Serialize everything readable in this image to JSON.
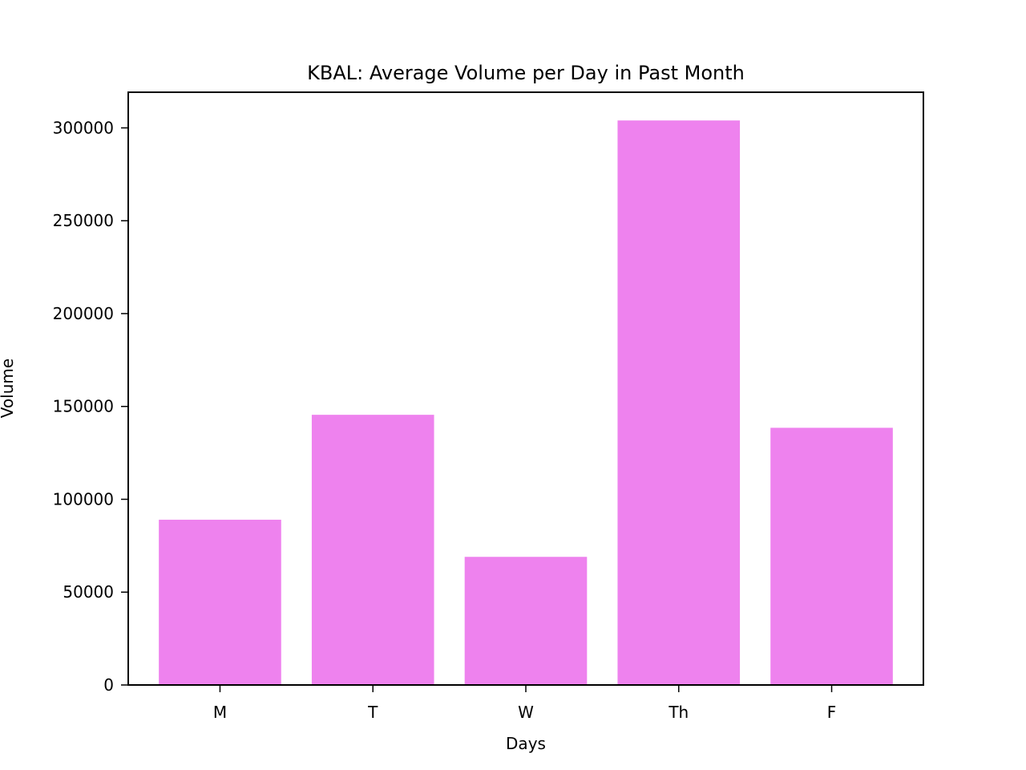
{
  "chart_data": {
    "type": "bar",
    "title": "KBAL: Average Volume per Day in Past Month",
    "xlabel": "Days",
    "ylabel": "Volume",
    "categories": [
      "M",
      "T",
      "W",
      "Th",
      "F"
    ],
    "values": [
      89000,
      145500,
      69000,
      304000,
      138500
    ],
    "ylim": [
      0,
      319200
    ],
    "yticks": [
      0,
      50000,
      100000,
      150000,
      200000,
      250000,
      300000
    ],
    "ytick_labels": [
      "0",
      "50000",
      "100000",
      "150000",
      "200000",
      "250000",
      "300000"
    ],
    "bar_color": "#ee82ee",
    "grid": false,
    "legend": false
  }
}
